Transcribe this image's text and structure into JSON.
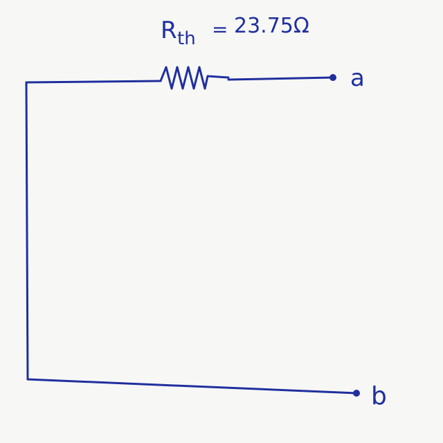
{
  "diagram": {
    "resistor": {
      "symbol": "R",
      "subscript": "th",
      "equals": "=",
      "value": "23.75Ω"
    },
    "terminals": {
      "a": "a",
      "b": "b"
    },
    "colors": {
      "ink": "#1f2f9e",
      "paper": "#f7f7f5"
    }
  }
}
